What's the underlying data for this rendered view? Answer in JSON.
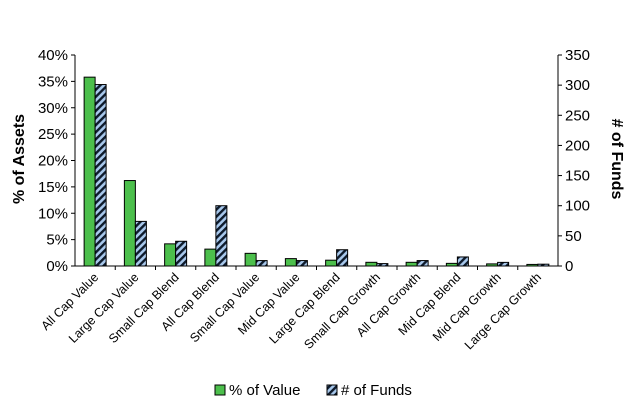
{
  "chart_data": {
    "type": "bar",
    "categories": [
      "All Cap Value",
      "Large Cap Value",
      "Small Cap Blend",
      "All Cap Blend",
      "Small Cap Value",
      "Mid Cap Value",
      "Large Cap Blend",
      "Small Cap Growth",
      "All Cap Growth",
      "Mid Cap Blend",
      "Mid Cap Growth",
      "Large Cap Growth"
    ],
    "series": [
      {
        "name": "% of Value",
        "axis": "left",
        "unit": "%",
        "color": "#4cbf4c",
        "values": [
          35.8,
          16.2,
          4.2,
          3.2,
          2.4,
          1.4,
          1.1,
          0.7,
          0.7,
          0.5,
          0.4,
          0.3
        ]
      },
      {
        "name": "# of Funds",
        "axis": "right",
        "color": "#a8c8ec",
        "values": [
          301,
          74,
          41,
          100,
          9,
          9,
          27,
          4,
          9,
          15,
          6,
          3
        ]
      }
    ],
    "ylabel": "% of Assets",
    "y2label": "# of Funds",
    "ylim": [
      0,
      40
    ],
    "y2lim": [
      0,
      350
    ],
    "yticks": [
      "0%",
      "5%",
      "10%",
      "15%",
      "20%",
      "25%",
      "30%",
      "35%",
      "40%"
    ],
    "y2ticks": [
      "0",
      "50",
      "100",
      "150",
      "200",
      "250",
      "300",
      "350"
    ],
    "grid": false,
    "legend": "bottom"
  }
}
